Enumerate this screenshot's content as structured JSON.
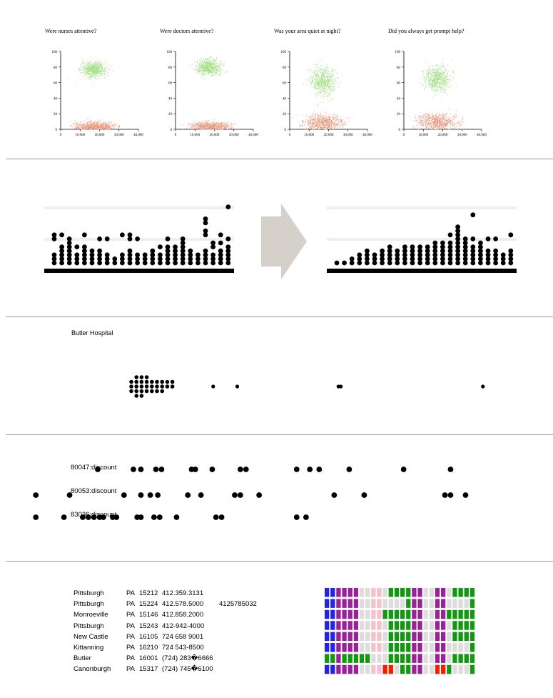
{
  "scatter": {
    "titles": [
      "Were nurses attentive?",
      "Were doctors attentive?",
      "Was your area quiet at night?",
      "Did you always get prompt help?"
    ],
    "y_ticks": [
      "0",
      "20",
      "40",
      "60",
      "80",
      "100"
    ],
    "x_ticks": [
      "0",
      "10,000",
      "20,000",
      "30,000",
      "40,000"
    ],
    "colors": {
      "upper": "#a6e08a",
      "lower": "#e89a80"
    }
  },
  "chart_data": [
    {
      "type": "scatter",
      "title": "Were nurses attentive?",
      "xlim": [
        0,
        40000
      ],
      "ylim": [
        0,
        100
      ],
      "clusters": [
        {
          "x_center": 17000,
          "y_center": 77,
          "x_spread": 3200,
          "y_spread": 5,
          "color": "#a6e08a"
        },
        {
          "x_center": 17000,
          "y_center": 4,
          "x_spread": 5000,
          "y_spread": 3,
          "color": "#e89a80"
        }
      ]
    },
    {
      "type": "scatter",
      "title": "Were doctors attentive?",
      "xlim": [
        0,
        40000
      ],
      "ylim": [
        0,
        100
      ],
      "clusters": [
        {
          "x_center": 17000,
          "y_center": 80,
          "x_spread": 3200,
          "y_spread": 5,
          "color": "#a6e08a"
        },
        {
          "x_center": 17000,
          "y_center": 4,
          "x_spread": 5000,
          "y_spread": 3,
          "color": "#e89a80"
        }
      ]
    },
    {
      "type": "scatter",
      "title": "Was your area quiet at night?",
      "xlim": [
        0,
        40000
      ],
      "ylim": [
        0,
        100
      ],
      "clusters": [
        {
          "x_center": 17000,
          "y_center": 62,
          "x_spread": 3200,
          "y_spread": 9,
          "color": "#a6e08a"
        },
        {
          "x_center": 17000,
          "y_center": 9,
          "x_spread": 5000,
          "y_spread": 5,
          "color": "#e89a80"
        }
      ]
    },
    {
      "type": "scatter",
      "title": "Did you always get prompt help?",
      "xlim": [
        0,
        40000
      ],
      "ylim": [
        0,
        100
      ],
      "clusters": [
        {
          "x_center": 17000,
          "y_center": 65,
          "x_spread": 3200,
          "y_spread": 8,
          "color": "#a6e08a"
        },
        {
          "x_center": 17000,
          "y_center": 10,
          "x_spread": 5000,
          "y_spread": 5,
          "color": "#e89a80"
        }
      ]
    }
  ],
  "dot_columns": {
    "before": [
      [
        1,
        2,
        3,
        7,
        8
      ],
      [
        1,
        2,
        3,
        4,
        5,
        8
      ],
      [
        1,
        2,
        3,
        4,
        5,
        6,
        7
      ],
      [
        1,
        2,
        3,
        5
      ],
      [
        1,
        2,
        3,
        4,
        5,
        8
      ],
      [
        1,
        2,
        3,
        4
      ],
      [
        1,
        2,
        3,
        4,
        7
      ],
      [
        1,
        2,
        3,
        7
      ],
      [
        1,
        2
      ],
      [
        1,
        2,
        3,
        8
      ],
      [
        1,
        2,
        3,
        4,
        7,
        8
      ],
      [
        1,
        2,
        3,
        7
      ],
      [
        1,
        2,
        3
      ],
      [
        1,
        2,
        3,
        4
      ],
      [
        1,
        2,
        3,
        5
      ],
      [
        1,
        2,
        3,
        4,
        5,
        7
      ],
      [
        1,
        2,
        3,
        4,
        5
      ],
      [
        1,
        2,
        3,
        4,
        5,
        6,
        7
      ],
      [
        1,
        2,
        3,
        4
      ],
      [
        1,
        2,
        3
      ],
      [
        1,
        2,
        3,
        4,
        8,
        9,
        11,
        12
      ],
      [
        1,
        2,
        3,
        5,
        6
      ],
      [
        1,
        2,
        3,
        4,
        6,
        8
      ],
      [
        1,
        2,
        3,
        4,
        5,
        7,
        15
      ]
    ],
    "after": [
      [
        1
      ],
      [
        1
      ],
      [
        1,
        2
      ],
      [
        1,
        2,
        3
      ],
      [
        1,
        2,
        3,
        4
      ],
      [
        1,
        2,
        3
      ],
      [
        1,
        2,
        3,
        4
      ],
      [
        1,
        2,
        3,
        4,
        5
      ],
      [
        1,
        2,
        3,
        4
      ],
      [
        1,
        2,
        3,
        4,
        5
      ],
      [
        1,
        2,
        3,
        4,
        5
      ],
      [
        1,
        2,
        3,
        4,
        5
      ],
      [
        1,
        2,
        3,
        4,
        5
      ],
      [
        1,
        2,
        3,
        4,
        5,
        6
      ],
      [
        1,
        2,
        3,
        4,
        5,
        6
      ],
      [
        1,
        2,
        3,
        4,
        5,
        6,
        8
      ],
      [
        1,
        2,
        3,
        4,
        5,
        6,
        7,
        8,
        9,
        10
      ],
      [
        1,
        2,
        3,
        4,
        5,
        6,
        7
      ],
      [
        1,
        2,
        3,
        4,
        5,
        7,
        13
      ],
      [
        1,
        2,
        3,
        4,
        5,
        6
      ],
      [
        1,
        2,
        3,
        4,
        7
      ],
      [
        1,
        2,
        3,
        4,
        7
      ],
      [
        1,
        2,
        3
      ],
      [
        1,
        2,
        3,
        4,
        8
      ]
    ]
  },
  "hospital": {
    "label": "Butler Hospital",
    "swarm_x": [
      0,
      0,
      0,
      1,
      1,
      1,
      1,
      1,
      2,
      2,
      2,
      2,
      2,
      3,
      3,
      3,
      3,
      4,
      4,
      4,
      5,
      5,
      5,
      6,
      6,
      6,
      7,
      7,
      8,
      8
    ],
    "outliers_x": [
      17,
      22,
      43,
      43.5,
      73
    ]
  },
  "discounts": {
    "rows": [
      {
        "label": "80047:discount",
        "x": [
          46,
          65,
          69,
          77,
          80,
          96,
          98,
          107,
          122,
          125,
          152,
          159,
          164,
          180,
          209,
          234
        ]
      },
      {
        "label": "80053:discount",
        "x": [
          13,
          31,
          60,
          69,
          74,
          78,
          94,
          101,
          119,
          122,
          132,
          172,
          188,
          231,
          234,
          242
        ]
      },
      {
        "label": "83036:discount",
        "x": [
          13,
          28,
          38,
          41,
          44,
          47,
          49,
          54,
          56,
          67,
          69,
          76,
          79,
          88,
          109,
          112,
          152,
          157
        ]
      }
    ]
  },
  "addresses": [
    {
      "city": "Pittsburgh",
      "state": "PA",
      "zip": "15212",
      "phone": "412.359.3131",
      "extra": ""
    },
    {
      "city": "Pittsburgh",
      "state": "PA",
      "zip": "15224",
      "phone": "412.578.5000",
      "extra": "4125785032"
    },
    {
      "city": "Monroeville",
      "state": "PA",
      "zip": "15146",
      "phone": "412.858.2000",
      "extra": ""
    },
    {
      "city": "Pittsburgh",
      "state": "PA",
      "zip": "15243",
      "phone": "412-942-4000",
      "extra": ""
    },
    {
      "city": "New Castle",
      "state": "PA",
      "zip": "16105",
      "phone": "724 658 9001",
      "extra": ""
    },
    {
      "city": "Kittanning",
      "state": "PA",
      "zip": "16210",
      "phone": "724 543-8500",
      "extra": ""
    },
    {
      "city": "Butler",
      "state": "PA",
      "zip": "16001",
      "phone": "(724) 283�6666",
      "extra": ""
    },
    {
      "city": "Canonburgh",
      "state": "PA",
      "zip": "15317",
      "phone": "(724) 745�6100",
      "extra": ""
    }
  ],
  "char_grid": {
    "legend": {
      "B": "#2222ee",
      "P": "#992299",
      "G": "#119911",
      "K": "#f6c0cc",
      "R": "#ee2200",
      "L": "#dddddd"
    },
    "rows": [
      "BBPPPPLLKKLGGGGPPLLPPLGGGG",
      "BBPPPPLLKKLLLLGPPLLPPLLLLG",
      "BBPPPPLLKKGGGGGPPLLPPGGGGG",
      "BBPPPPLLKKLGGGGPPLLPPLGGGG",
      "BBPPPPLLKKLGGGGPPLLPPLGGGG",
      "BBPPPPLLKKLGGGGPPLLPPLLLLG",
      "GGPGGGGGLLLGGGGPPLLPPLGGGG",
      "BBPPPPLLKKRRLGGPPLLRRGLLLG"
    ]
  }
}
